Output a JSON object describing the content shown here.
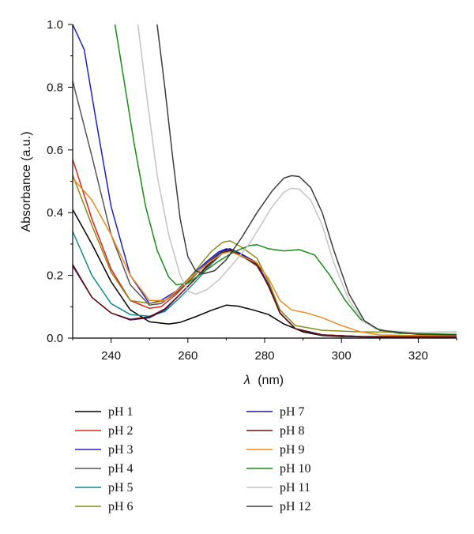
{
  "chart_data": {
    "type": "line",
    "xlabel_symbol": "λ",
    "xlabel_unit": "(nm)",
    "ylabel": "Absorbance (a.u.)",
    "xlim": [
      230,
      330
    ],
    "ylim": [
      0,
      1.0
    ],
    "x_ticks": [
      240,
      260,
      280,
      300,
      320
    ],
    "y_ticks": [
      "0.0",
      "0.2",
      "0.4",
      "0.6",
      "0.8",
      "1.0"
    ],
    "legend_placement": "bottom",
    "series": [
      {
        "name": "pH 1",
        "color": "#000000",
        "points": [
          [
            230,
            0.41
          ],
          [
            235,
            0.3
          ],
          [
            240,
            0.18
          ],
          [
            245,
            0.09
          ],
          [
            250,
            0.052
          ],
          [
            255,
            0.045
          ],
          [
            258,
            0.05
          ],
          [
            262,
            0.068
          ],
          [
            266,
            0.088
          ],
          [
            270,
            0.105
          ],
          [
            273,
            0.102
          ],
          [
            277,
            0.09
          ],
          [
            281,
            0.075
          ],
          [
            285,
            0.045
          ],
          [
            290,
            0.02
          ],
          [
            295,
            0.008
          ],
          [
            300,
            0.005
          ],
          [
            310,
            0.003
          ],
          [
            330,
            0.003
          ]
        ]
      },
      {
        "name": "pH 2",
        "color": "#e2231a",
        "points": [
          [
            230,
            0.57
          ],
          [
            235,
            0.38
          ],
          [
            240,
            0.22
          ],
          [
            245,
            0.12
          ],
          [
            250,
            0.095
          ],
          [
            253,
            0.1
          ],
          [
            257,
            0.14
          ],
          [
            261,
            0.19
          ],
          [
            265,
            0.24
          ],
          [
            268,
            0.27
          ],
          [
            270,
            0.28
          ],
          [
            272,
            0.272
          ],
          [
            275,
            0.255
          ],
          [
            278,
            0.23
          ],
          [
            281,
            0.17
          ],
          [
            284,
            0.08
          ],
          [
            288,
            0.03
          ],
          [
            295,
            0.01
          ],
          [
            305,
            0.004
          ],
          [
            330,
            0.003
          ]
        ]
      },
      {
        "name": "pH 3",
        "color": "#1f1fc8",
        "points": [
          [
            230,
            1.0
          ],
          [
            233,
            0.92
          ],
          [
            236,
            0.7
          ],
          [
            240,
            0.42
          ],
          [
            245,
            0.2
          ],
          [
            250,
            0.11
          ],
          [
            253,
            0.12
          ],
          [
            257,
            0.15
          ],
          [
            261,
            0.2
          ],
          [
            265,
            0.245
          ],
          [
            268,
            0.275
          ],
          [
            270,
            0.285
          ],
          [
            272,
            0.278
          ],
          [
            275,
            0.26
          ],
          [
            278,
            0.235
          ],
          [
            281,
            0.17
          ],
          [
            284,
            0.08
          ],
          [
            288,
            0.03
          ],
          [
            295,
            0.01
          ],
          [
            305,
            0.004
          ],
          [
            330,
            0.003
          ]
        ]
      },
      {
        "name": "pH 4",
        "color": "#555555",
        "points": [
          [
            230,
            0.82
          ],
          [
            235,
            0.58
          ],
          [
            240,
            0.33
          ],
          [
            245,
            0.17
          ],
          [
            250,
            0.105
          ],
          [
            253,
            0.11
          ],
          [
            257,
            0.145
          ],
          [
            261,
            0.19
          ],
          [
            265,
            0.24
          ],
          [
            268,
            0.27
          ],
          [
            270,
            0.28
          ],
          [
            272,
            0.272
          ],
          [
            275,
            0.255
          ],
          [
            278,
            0.23
          ],
          [
            281,
            0.17
          ],
          [
            284,
            0.08
          ],
          [
            288,
            0.03
          ],
          [
            295,
            0.01
          ],
          [
            305,
            0.004
          ],
          [
            330,
            0.003
          ]
        ]
      },
      {
        "name": "pH 5",
        "color": "#138a8a",
        "points": [
          [
            230,
            0.34
          ],
          [
            235,
            0.2
          ],
          [
            240,
            0.11
          ],
          [
            245,
            0.075
          ],
          [
            250,
            0.07
          ],
          [
            254,
            0.085
          ],
          [
            258,
            0.13
          ],
          [
            262,
            0.18
          ],
          [
            266,
            0.235
          ],
          [
            269,
            0.27
          ],
          [
            271,
            0.278
          ],
          [
            274,
            0.262
          ],
          [
            278,
            0.235
          ],
          [
            281,
            0.17
          ],
          [
            284,
            0.08
          ],
          [
            288,
            0.03
          ],
          [
            295,
            0.01
          ],
          [
            305,
            0.005
          ],
          [
            330,
            0.004
          ]
        ]
      },
      {
        "name": "pH 6",
        "color": "#8a8a1a",
        "points": [
          [
            230,
            0.52
          ],
          [
            235,
            0.36
          ],
          [
            240,
            0.21
          ],
          [
            245,
            0.12
          ],
          [
            250,
            0.11
          ],
          [
            254,
            0.12
          ],
          [
            258,
            0.16
          ],
          [
            262,
            0.215
          ],
          [
            266,
            0.275
          ],
          [
            269,
            0.305
          ],
          [
            271,
            0.31
          ],
          [
            274,
            0.29
          ],
          [
            278,
            0.255
          ],
          [
            281,
            0.18
          ],
          [
            284,
            0.09
          ],
          [
            288,
            0.04
          ],
          [
            295,
            0.025
          ],
          [
            305,
            0.02
          ],
          [
            320,
            0.018
          ],
          [
            330,
            0.02
          ]
        ]
      },
      {
        "name": "pH 7",
        "color": "#1a1a8c",
        "points": [
          [
            230,
            0.23
          ],
          [
            235,
            0.13
          ],
          [
            240,
            0.08
          ],
          [
            245,
            0.058
          ],
          [
            250,
            0.065
          ],
          [
            254,
            0.09
          ],
          [
            258,
            0.14
          ],
          [
            262,
            0.19
          ],
          [
            266,
            0.245
          ],
          [
            269,
            0.278
          ],
          [
            271,
            0.285
          ],
          [
            274,
            0.268
          ],
          [
            278,
            0.24
          ],
          [
            281,
            0.17
          ],
          [
            284,
            0.08
          ],
          [
            288,
            0.03
          ],
          [
            295,
            0.01
          ],
          [
            305,
            0.005
          ],
          [
            330,
            0.004
          ]
        ]
      },
      {
        "name": "pH 8",
        "color": "#6a1010",
        "points": [
          [
            230,
            0.235
          ],
          [
            235,
            0.13
          ],
          [
            240,
            0.08
          ],
          [
            245,
            0.06
          ],
          [
            250,
            0.068
          ],
          [
            254,
            0.093
          ],
          [
            258,
            0.14
          ],
          [
            262,
            0.19
          ],
          [
            266,
            0.24
          ],
          [
            269,
            0.272
          ],
          [
            271,
            0.28
          ],
          [
            274,
            0.262
          ],
          [
            278,
            0.235
          ],
          [
            281,
            0.165
          ],
          [
            284,
            0.08
          ],
          [
            288,
            0.03
          ],
          [
            295,
            0.01
          ],
          [
            305,
            0.005
          ],
          [
            330,
            0.004
          ]
        ]
      },
      {
        "name": "pH 9",
        "color": "#f08a1c",
        "points": [
          [
            230,
            0.51
          ],
          [
            235,
            0.44
          ],
          [
            240,
            0.33
          ],
          [
            245,
            0.2
          ],
          [
            250,
            0.12
          ],
          [
            254,
            0.12
          ],
          [
            258,
            0.16
          ],
          [
            262,
            0.205
          ],
          [
            266,
            0.245
          ],
          [
            269,
            0.27
          ],
          [
            271,
            0.275
          ],
          [
            274,
            0.262
          ],
          [
            278,
            0.24
          ],
          [
            281,
            0.19
          ],
          [
            284,
            0.12
          ],
          [
            287,
            0.09
          ],
          [
            291,
            0.08
          ],
          [
            295,
            0.065
          ],
          [
            300,
            0.04
          ],
          [
            305,
            0.02
          ],
          [
            310,
            0.01
          ],
          [
            320,
            0.008
          ],
          [
            330,
            0.008
          ]
        ]
      },
      {
        "name": "pH 10",
        "color": "#1a8a1a",
        "points": [
          [
            241,
            1.0
          ],
          [
            243,
            0.85
          ],
          [
            246,
            0.62
          ],
          [
            249,
            0.42
          ],
          [
            252,
            0.28
          ],
          [
            255,
            0.195
          ],
          [
            257,
            0.17
          ],
          [
            260,
            0.175
          ],
          [
            264,
            0.21
          ],
          [
            268,
            0.245
          ],
          [
            272,
            0.275
          ],
          [
            276,
            0.295
          ],
          [
            278,
            0.298
          ],
          [
            281,
            0.285
          ],
          [
            285,
            0.278
          ],
          [
            289,
            0.282
          ],
          [
            293,
            0.265
          ],
          [
            297,
            0.2
          ],
          [
            301,
            0.12
          ],
          [
            305,
            0.06
          ],
          [
            309,
            0.03
          ],
          [
            315,
            0.015
          ],
          [
            330,
            0.012
          ]
        ]
      },
      {
        "name": "pH 11",
        "color": "#c4c4c4",
        "points": [
          [
            247,
            1.0
          ],
          [
            249,
            0.8
          ],
          [
            252,
            0.52
          ],
          [
            255,
            0.33
          ],
          [
            258,
            0.2
          ],
          [
            260,
            0.15
          ],
          [
            262,
            0.14
          ],
          [
            265,
            0.155
          ],
          [
            268,
            0.185
          ],
          [
            272,
            0.24
          ],
          [
            276,
            0.3
          ],
          [
            279,
            0.36
          ],
          [
            282,
            0.42
          ],
          [
            285,
            0.465
          ],
          [
            287,
            0.478
          ],
          [
            289,
            0.475
          ],
          [
            292,
            0.44
          ],
          [
            295,
            0.36
          ],
          [
            298,
            0.24
          ],
          [
            302,
            0.12
          ],
          [
            306,
            0.05
          ],
          [
            310,
            0.025
          ],
          [
            320,
            0.018
          ],
          [
            330,
            0.02
          ]
        ]
      },
      {
        "name": "pH 12",
        "color": "#3d3d3d",
        "points": [
          [
            252,
            1.0
          ],
          [
            254,
            0.8
          ],
          [
            256,
            0.58
          ],
          [
            258,
            0.38
          ],
          [
            260,
            0.26
          ],
          [
            262,
            0.215
          ],
          [
            264,
            0.205
          ],
          [
            267,
            0.215
          ],
          [
            270,
            0.25
          ],
          [
            274,
            0.32
          ],
          [
            278,
            0.4
          ],
          [
            282,
            0.47
          ],
          [
            285,
            0.51
          ],
          [
            287,
            0.518
          ],
          [
            289,
            0.515
          ],
          [
            292,
            0.48
          ],
          [
            295,
            0.4
          ],
          [
            298,
            0.28
          ],
          [
            302,
            0.14
          ],
          [
            306,
            0.055
          ],
          [
            310,
            0.025
          ],
          [
            320,
            0.012
          ],
          [
            330,
            0.01
          ]
        ]
      }
    ]
  }
}
